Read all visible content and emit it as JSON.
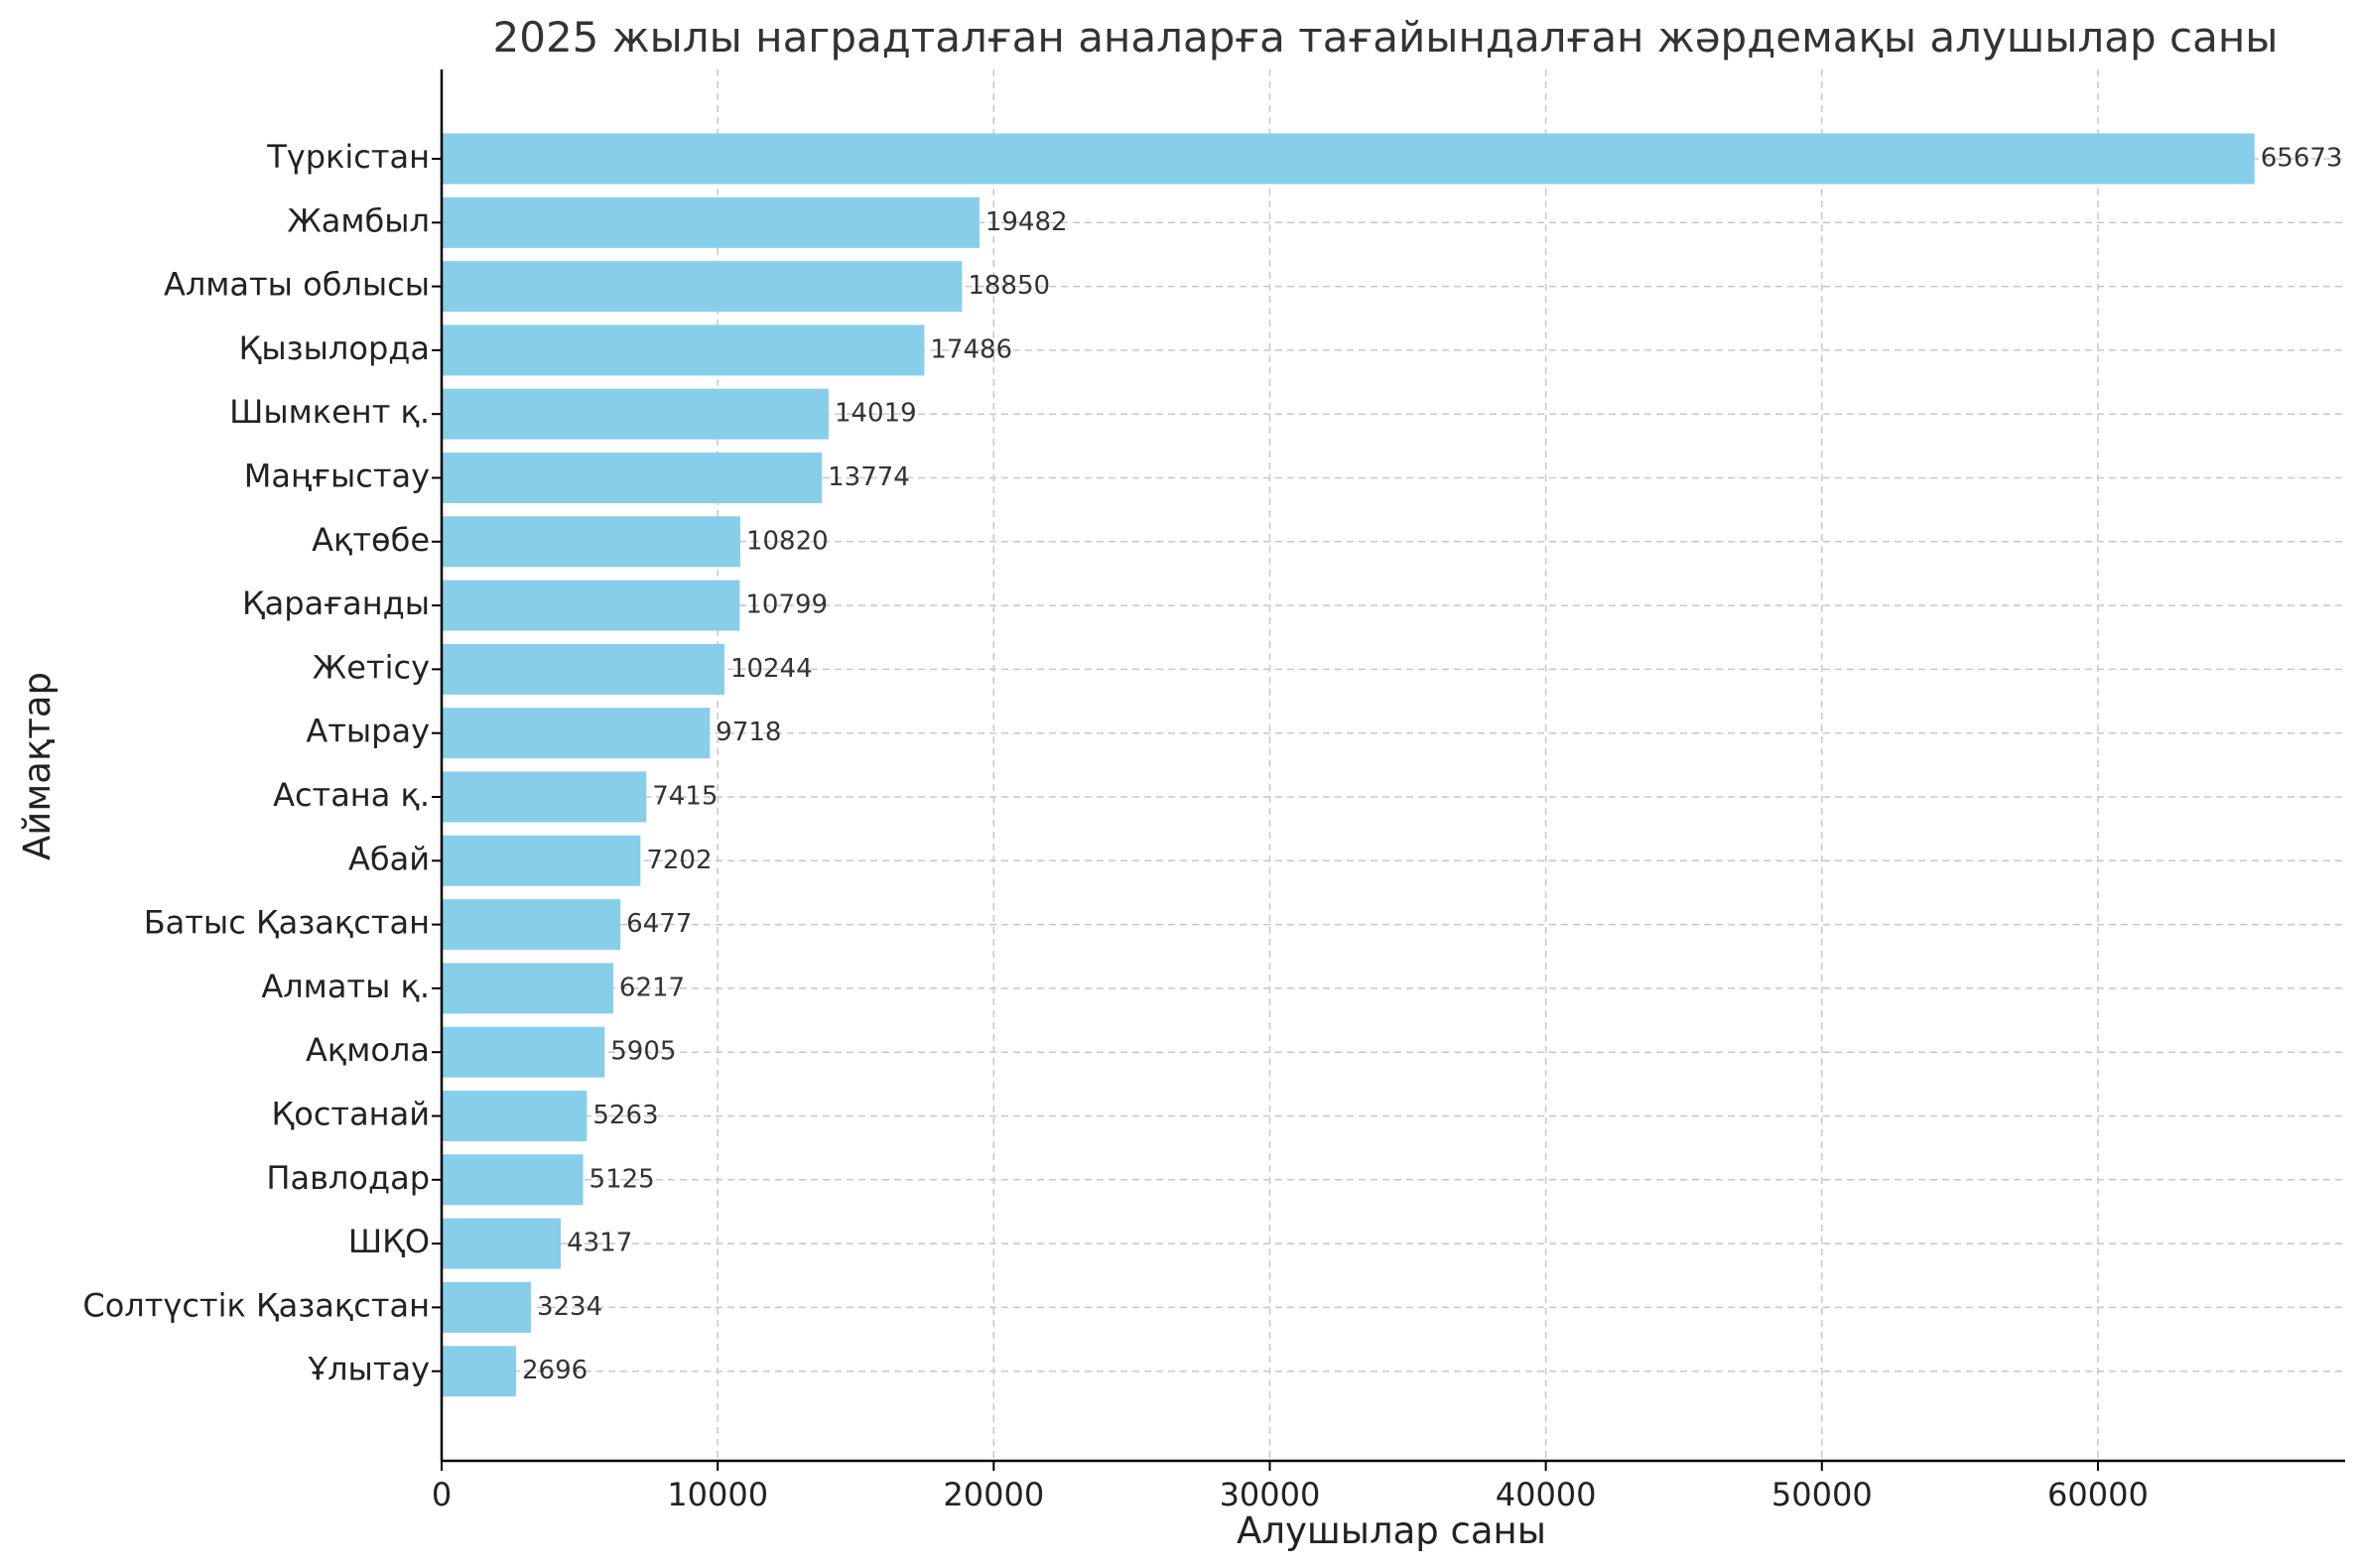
{
  "chart_data": {
    "type": "bar",
    "orientation": "horizontal",
    "title": "2025 жылы наградталған аналарға тағайындалған жәрдемақы алушылар саны",
    "xlabel": "Алушылар саны",
    "ylabel": "Аймақтар",
    "xlim": [
      0,
      68954
    ],
    "xticks": [
      0,
      10000,
      20000,
      30000,
      40000,
      50000,
      60000
    ],
    "grid": true,
    "bar_color": "#87CEEB",
    "value_labels": true,
    "categories": [
      "Түркістан",
      "Жамбыл",
      "Алматы облысы",
      "Қызылорда",
      "Шымкент қ.",
      "Маңғыстау",
      "Ақтөбе",
      "Қарағанды",
      "Жетісу",
      "Атырау",
      "Астана қ.",
      "Абай",
      "Батыс Қазақстан",
      "Алматы қ.",
      "Ақмола",
      "Қостанай",
      "Павлодар",
      "ШҚО",
      "Солтүстік Қазақстан",
      "Ұлытау"
    ],
    "values": [
      65673,
      19482,
      18850,
      17486,
      14019,
      13774,
      10820,
      10799,
      10244,
      9718,
      7415,
      7202,
      6477,
      6217,
      5905,
      5263,
      5125,
      4317,
      3234,
      2696
    ]
  }
}
